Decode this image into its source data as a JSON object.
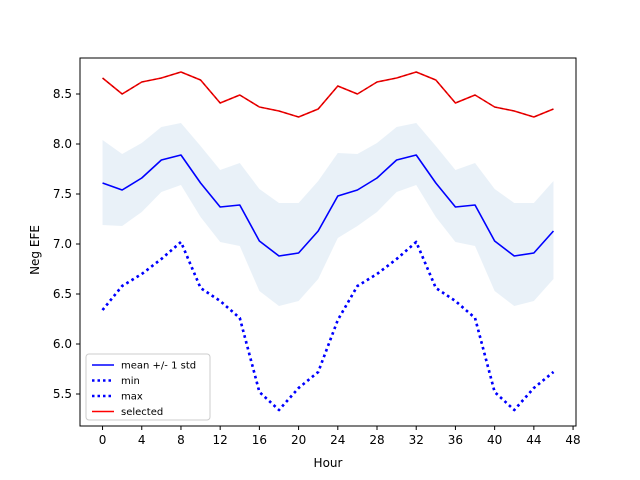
{
  "chart_data": {
    "type": "line",
    "title": "",
    "xlabel": "Hour",
    "ylabel": "Neg EFE",
    "xlim": [
      -2.3,
      48.3
    ],
    "ylim": [
      5.18,
      8.86
    ],
    "xticks": [
      0,
      4,
      8,
      12,
      16,
      20,
      24,
      28,
      32,
      36,
      40,
      44,
      48
    ],
    "xtick_labels": [
      "0",
      "4",
      "8",
      "12",
      "16",
      "20",
      "24",
      "28",
      "32",
      "36",
      "40",
      "44",
      "48"
    ],
    "yticks": [
      5.5,
      6.0,
      6.5,
      7.0,
      7.5,
      8.0,
      8.5
    ],
    "ytick_labels": [
      "5.5",
      "6.0",
      "6.5",
      "7.0",
      "7.5",
      "8.0",
      "8.5"
    ],
    "grid": false,
    "legend_position": "lower-left",
    "x": [
      0,
      2,
      4,
      6,
      8,
      10,
      12,
      14,
      16,
      18,
      20,
      22,
      24,
      26,
      28,
      30,
      32,
      34,
      36,
      38,
      40,
      42,
      44,
      46
    ],
    "band": {
      "legend_label": "mean +/- 1 std",
      "color": "#cfe0f0",
      "upper": [
        8.04,
        7.9,
        8.01,
        8.17,
        8.21,
        7.98,
        7.74,
        7.81,
        7.55,
        7.41,
        7.41,
        7.63,
        7.91,
        7.9,
        8.01,
        8.17,
        8.21,
        7.98,
        7.74,
        7.81,
        7.55,
        7.41,
        7.41,
        7.63
      ],
      "lower": [
        7.19,
        7.18,
        7.32,
        7.52,
        7.59,
        7.27,
        7.02,
        6.98,
        6.53,
        6.38,
        6.43,
        6.65,
        7.06,
        7.18,
        7.32,
        7.52,
        7.59,
        7.27,
        7.02,
        6.98,
        6.53,
        6.38,
        6.43,
        6.65
      ]
    },
    "series": [
      {
        "name": "mean +/- 1 std",
        "color": "#0000ff",
        "style": "solid",
        "values": [
          7.61,
          7.54,
          7.66,
          7.84,
          7.89,
          7.61,
          7.37,
          7.39,
          7.03,
          6.88,
          6.91,
          7.13,
          7.48,
          7.54,
          7.66,
          7.84,
          7.89,
          7.61,
          7.37,
          7.39,
          7.03,
          6.88,
          6.91,
          7.13
        ]
      },
      {
        "name": "min",
        "color": "#0000ff",
        "style": "dotted",
        "values": [
          6.34,
          6.58,
          6.7,
          6.85,
          7.02,
          6.56,
          6.43,
          6.26,
          5.52,
          5.34,
          5.56,
          5.72,
          6.24,
          6.58,
          6.7,
          6.85,
          7.02,
          6.56,
          6.43,
          6.26,
          5.52,
          5.34,
          5.56,
          5.72
        ]
      },
      {
        "name": "max",
        "color": "#0000ff",
        "style": "dotted",
        "values": [
          6.34,
          6.58,
          6.7,
          6.85,
          7.02,
          6.56,
          6.43,
          6.26,
          5.52,
          5.34,
          5.56,
          5.72,
          6.24,
          6.58,
          6.7,
          6.85,
          7.02,
          6.56,
          6.43,
          6.26,
          5.52,
          5.34,
          5.56,
          5.72
        ]
      },
      {
        "name": "selected",
        "color": "#ff0000",
        "style": "solid",
        "values": [
          8.66,
          8.5,
          8.62,
          8.66,
          8.72,
          8.64,
          8.41,
          8.49,
          8.37,
          8.33,
          8.27,
          8.35,
          8.58,
          8.5,
          8.62,
          8.66,
          8.72,
          8.64,
          8.41,
          8.49,
          8.37,
          8.33,
          8.27,
          8.35
        ]
      }
    ],
    "legend": [
      {
        "label": "mean +/- 1 std",
        "color": "#0000ff",
        "style": "solid"
      },
      {
        "label": "min",
        "color": "#0000ff",
        "style": "dotted"
      },
      {
        "label": "max",
        "color": "#0000ff",
        "style": "dotted"
      },
      {
        "label": "selected",
        "color": "#ff0000",
        "style": "solid"
      }
    ]
  }
}
